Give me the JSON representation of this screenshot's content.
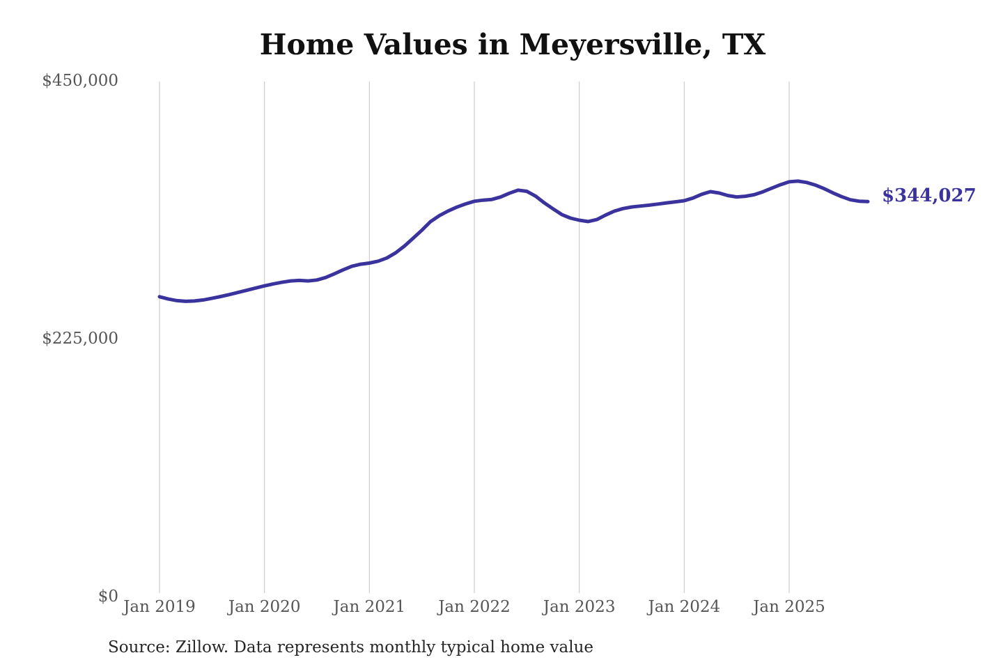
{
  "title": "Home Values in Meyersville, TX",
  "end_label": "$344,027",
  "source_note": "Source: Zillow. Data represents monthly typical home value",
  "colors": {
    "line": "#3a339d",
    "end_label_text": "#3a339d",
    "axis_text": "#555555",
    "gridline": "#cccccc",
    "title_text": "#111111",
    "source_text": "#262626",
    "background": "#ffffff"
  },
  "chart_data": {
    "type": "line",
    "title": "Home Values in Meyersville, TX",
    "xlabel": "",
    "ylabel": "",
    "ylim": [
      0,
      450000
    ],
    "grid": "vertical-gridlines-only",
    "legend": "none",
    "y_ticks": [
      {
        "value": 0,
        "label": "$0"
      },
      {
        "value": 225000,
        "label": "$225,000"
      },
      {
        "value": 450000,
        "label": "$450,000"
      }
    ],
    "x_ticks": [
      {
        "month_index": 0,
        "label": "Jan 2019"
      },
      {
        "month_index": 12,
        "label": "Jan 2020"
      },
      {
        "month_index": 24,
        "label": "Jan 2021"
      },
      {
        "month_index": 36,
        "label": "Jan 2022"
      },
      {
        "month_index": 48,
        "label": "Jan 2023"
      },
      {
        "month_index": 60,
        "label": "Jan 2024"
      },
      {
        "month_index": 72,
        "label": "Jan 2025"
      }
    ],
    "series": [
      {
        "name": "Monthly typical home value",
        "start_month": "Jan 2019",
        "frequency": "monthly",
        "end_value": 344027,
        "end_value_label": "$344,027",
        "values": [
          261000,
          259000,
          257600,
          257000,
          257300,
          258200,
          259600,
          261200,
          262900,
          264800,
          266700,
          268600,
          270500,
          272200,
          273600,
          274800,
          275200,
          274800,
          275600,
          277800,
          281000,
          284500,
          287600,
          289400,
          290400,
          292000,
          294800,
          299300,
          305200,
          312000,
          319100,
          326600,
          331800,
          335800,
          339200,
          342000,
          344300,
          345300,
          345900,
          348000,
          351300,
          354000,
          353000,
          348800,
          342900,
          337700,
          332700,
          329600,
          327800,
          326600,
          328300,
          332200,
          335700,
          337900,
          339300,
          340100,
          340900,
          341900,
          342900,
          343800,
          344800,
          347100,
          350400,
          352700,
          351500,
          349300,
          348100,
          348700,
          350000,
          352600,
          355700,
          358700,
          361300,
          361900,
          360700,
          358400,
          355300,
          351600,
          348300,
          345600,
          344400,
          344027
        ]
      }
    ]
  }
}
